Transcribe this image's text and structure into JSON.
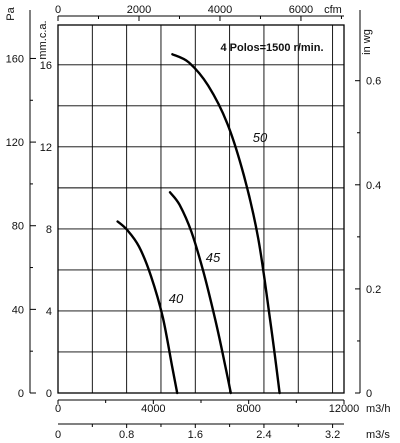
{
  "chart_data": {
    "type": "line",
    "title": "4 Polos=1500 r/min.",
    "x_axis": {
      "unit": "m3/h",
      "range": [
        0,
        12000
      ],
      "ticks": [
        "0",
        "4000",
        "8000",
        "12000"
      ]
    },
    "x_axis_secondary": {
      "unit": "m3/s",
      "range": [
        0,
        3.333
      ],
      "ticks": [
        "0.8",
        "1.6",
        "2.4",
        "3.2"
      ]
    },
    "x_axis_top": {
      "unit": "cfm",
      "range": [
        0,
        7063
      ],
      "ticks": [
        "0",
        "2000",
        "4000",
        "6000"
      ]
    },
    "y_axis": {
      "unit": "Pa",
      "range": [
        0,
        176
      ],
      "ticks": [
        "0",
        "40",
        "80",
        "120",
        "160"
      ]
    },
    "y_axis_secondary": {
      "unit": "mm.c.a.",
      "range": [
        0,
        17.94
      ],
      "ticks": [
        "0",
        "4",
        "8",
        "12",
        "16"
      ]
    },
    "y_axis_right": {
      "unit": "in wg",
      "range": [
        0,
        0.707
      ],
      "ticks": [
        "0",
        "0.2",
        "0.4",
        "0.6"
      ]
    },
    "grid": true,
    "series": [
      {
        "name": "40",
        "x": [
          2500,
          2900,
          3400,
          3900,
          4400,
          4800,
          5000
        ],
        "y": [
          82,
          78,
          70,
          56,
          36,
          12,
          0
        ]
      },
      {
        "name": "45",
        "x": [
          4700,
          5100,
          5600,
          6100,
          6600,
          7000,
          7250
        ],
        "y": [
          96,
          90,
          77,
          58,
          35,
          14,
          0
        ]
      },
      {
        "name": "50",
        "x": [
          4800,
          5500,
          6300,
          7100,
          7800,
          8400,
          8900,
          9300
        ],
        "y": [
          162,
          158,
          147,
          129,
          104,
          74,
          35,
          0
        ]
      }
    ]
  }
}
